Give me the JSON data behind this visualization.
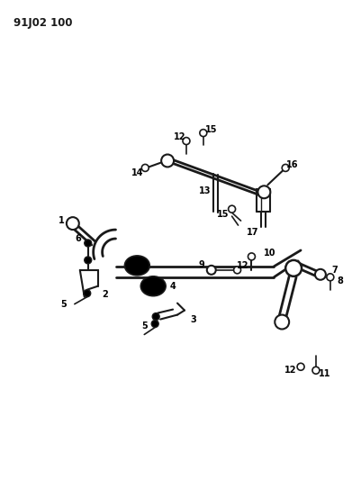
{
  "title": "91J02 100",
  "bg_color": "#ffffff",
  "line_color": "#1a1a1a",
  "title_fontsize": 8.5,
  "label_fontsize": 7,
  "figsize": [
    4.02,
    5.33
  ],
  "dpi": 100
}
